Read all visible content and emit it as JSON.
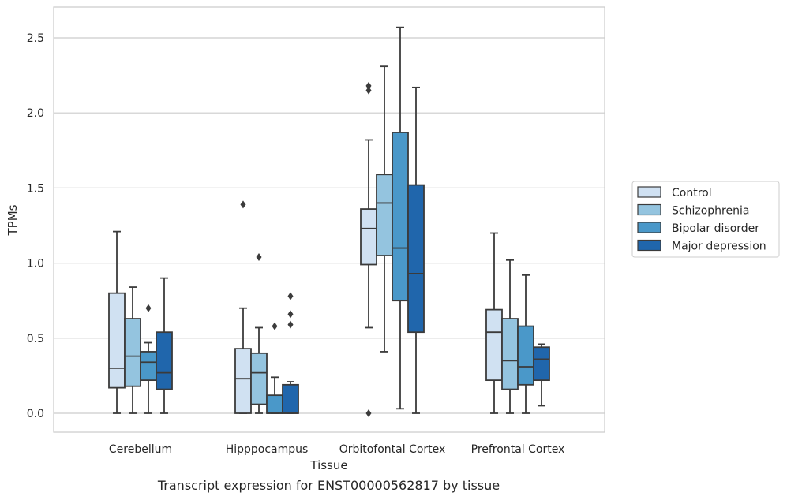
{
  "chart_data": {
    "type": "box",
    "xlabel": "Tissue",
    "ylabel": "TPMs",
    "caption": "Transcript expression for ENST00000562817 by tissue",
    "ylim": [
      -0.13,
      2.7
    ],
    "yticks": [
      0.0,
      0.5,
      1.0,
      1.5,
      2.0,
      2.5
    ],
    "ytick_labels": [
      "0.0",
      "0.5",
      "1.0",
      "1.5",
      "2.0",
      "2.5"
    ],
    "grid": "horizontal",
    "legend_position": "right",
    "categories": [
      "Cerebellum",
      "Hipppocampus",
      "Orbitofontal Cortex",
      "Prefrontal Cortex"
    ],
    "series": [
      {
        "name": "Control",
        "color": "#d0e1f2",
        "boxes": [
          {
            "min": 0.0,
            "q1": 0.17,
            "median": 0.3,
            "q3": 0.8,
            "max": 1.21,
            "outliers": []
          },
          {
            "min": 0.0,
            "q1": 0.0,
            "median": 0.23,
            "q3": 0.43,
            "max": 0.7,
            "outliers": [
              1.39
            ]
          },
          {
            "min": 0.57,
            "q1": 0.99,
            "median": 1.23,
            "q3": 1.36,
            "max": 1.82,
            "outliers": [
              2.15,
              2.18,
              0.0
            ]
          },
          {
            "min": 0.0,
            "q1": 0.22,
            "median": 0.54,
            "q3": 0.69,
            "max": 1.2,
            "outliers": []
          }
        ]
      },
      {
        "name": "Schizophrenia",
        "color": "#94c4df",
        "boxes": [
          {
            "min": 0.0,
            "q1": 0.18,
            "median": 0.38,
            "q3": 0.63,
            "max": 0.84,
            "outliers": []
          },
          {
            "min": 0.0,
            "q1": 0.06,
            "median": 0.27,
            "q3": 0.4,
            "max": 0.57,
            "outliers": [
              1.04
            ]
          },
          {
            "min": 0.41,
            "q1": 1.05,
            "median": 1.4,
            "q3": 1.59,
            "max": 2.31,
            "outliers": []
          },
          {
            "min": 0.0,
            "q1": 0.16,
            "median": 0.35,
            "q3": 0.63,
            "max": 1.02,
            "outliers": []
          }
        ]
      },
      {
        "name": "Bipolar disorder",
        "color": "#4a98c9",
        "boxes": [
          {
            "min": 0.0,
            "q1": 0.22,
            "median": 0.34,
            "q3": 0.41,
            "max": 0.47,
            "outliers": [
              0.7
            ]
          },
          {
            "min": 0.0,
            "q1": 0.0,
            "median": 0.0,
            "q3": 0.12,
            "max": 0.24,
            "outliers": [
              0.58
            ]
          },
          {
            "min": 0.03,
            "q1": 0.75,
            "median": 1.1,
            "q3": 1.87,
            "max": 2.57,
            "outliers": []
          },
          {
            "min": 0.0,
            "q1": 0.19,
            "median": 0.31,
            "q3": 0.58,
            "max": 0.92,
            "outliers": []
          }
        ]
      },
      {
        "name": "Major depression",
        "color": "#2066ac",
        "boxes": [
          {
            "min": 0.0,
            "q1": 0.16,
            "median": 0.27,
            "q3": 0.54,
            "max": 0.9,
            "outliers": []
          },
          {
            "min": 0.0,
            "q1": 0.0,
            "median": 0.0,
            "q3": 0.19,
            "max": 0.21,
            "outliers": [
              0.59,
              0.66,
              0.78
            ]
          },
          {
            "min": 0.0,
            "q1": 0.54,
            "median": 0.93,
            "q3": 1.52,
            "max": 2.17,
            "outliers": []
          },
          {
            "min": 0.05,
            "q1": 0.22,
            "median": 0.36,
            "q3": 0.44,
            "max": 0.46,
            "outliers": []
          }
        ]
      }
    ]
  }
}
